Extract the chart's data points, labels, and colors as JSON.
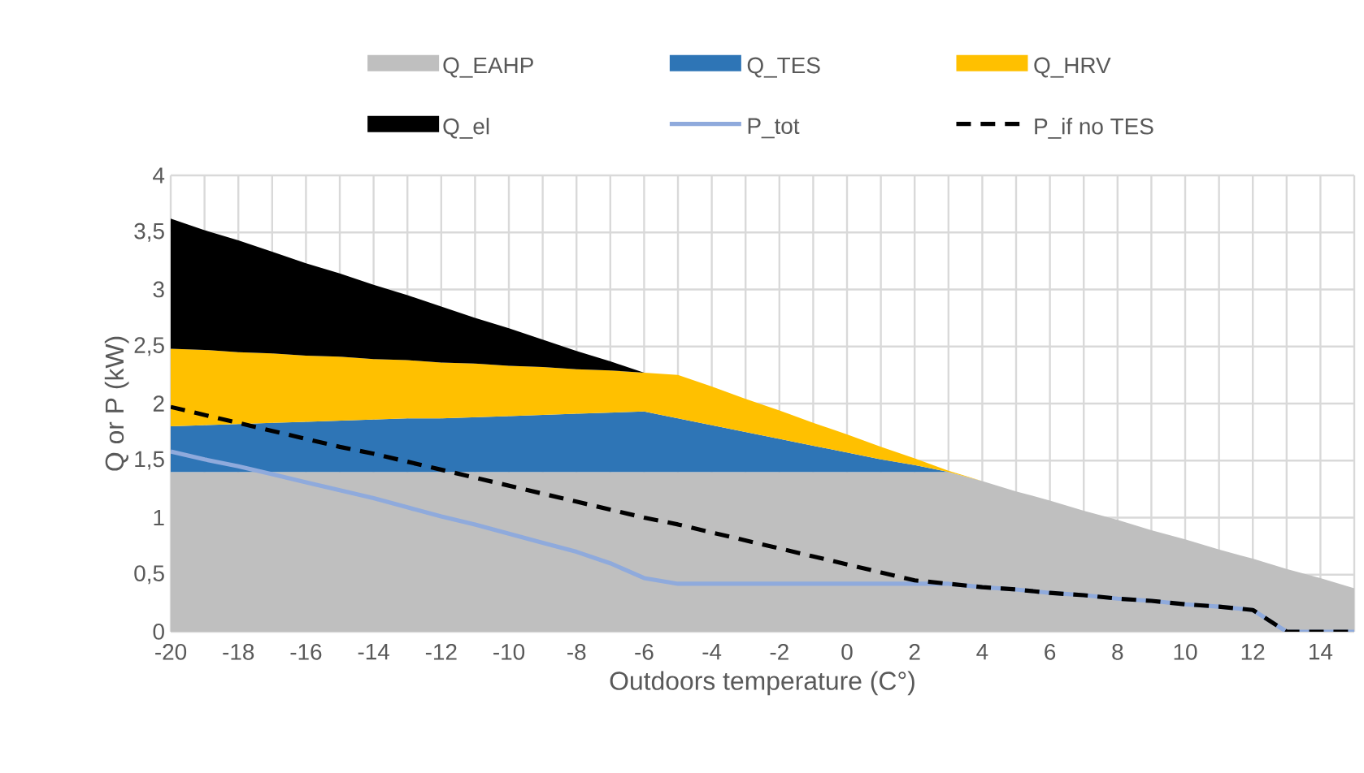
{
  "chart_data": {
    "type": "area",
    "stacked": true,
    "xlabel": "Outdoors temperature (C°)",
    "ylabel": "Q or P (kW)",
    "legend": "top",
    "grid": true,
    "x": [
      -20,
      -19,
      -18,
      -17,
      -16,
      -15,
      -14,
      -13,
      -12,
      -11,
      -10,
      -9,
      -8,
      -7,
      -6,
      -5,
      -4,
      -3,
      -2,
      -1,
      0,
      1,
      2,
      3,
      4,
      5,
      6,
      7,
      8,
      9,
      10,
      11,
      12,
      13,
      14,
      15
    ],
    "xlim": [
      -20,
      15
    ],
    "ylim": [
      0,
      4
    ],
    "xticks": [
      -20,
      {
        "value": -19,
        "label": null
      },
      -18,
      {
        "value": -17,
        "label": null
      },
      -16,
      {
        "value": -15,
        "label": null
      },
      -14,
      {
        "value": -13,
        "label": null
      },
      -12,
      {
        "value": -11,
        "label": null
      },
      -10,
      {
        "value": -9,
        "label": null
      },
      -8,
      {
        "value": -7,
        "label": null
      },
      -6,
      {
        "value": -5,
        "label": null
      },
      -4,
      {
        "value": -3,
        "label": null
      },
      -2,
      {
        "value": -1,
        "label": null
      },
      0,
      {
        "value": 1,
        "label": null
      },
      2,
      {
        "value": 3,
        "label": null
      },
      4,
      {
        "value": 5,
        "label": null
      },
      6,
      {
        "value": 7,
        "label": null
      },
      8,
      {
        "value": 9,
        "label": null
      },
      10,
      {
        "value": 11,
        "label": null
      },
      12,
      {
        "value": 13,
        "label": null
      },
      14,
      {
        "value": 15,
        "label": null
      }
    ],
    "yticks": [
      0,
      {
        "value": 0.5,
        "label": "0,5"
      },
      1,
      {
        "value": 1.5,
        "label": "1,5"
      },
      2,
      {
        "value": 2.5,
        "label": "2,5"
      },
      3,
      {
        "value": 3.5,
        "label": "3,5"
      },
      4
    ],
    "series": [
      {
        "name": "Q_EAHP",
        "color": "#bfbfbf",
        "values": [
          1.4,
          1.4,
          1.4,
          1.4,
          1.4,
          1.4,
          1.4,
          1.4,
          1.4,
          1.4,
          1.4,
          1.4,
          1.4,
          1.4,
          1.4,
          1.4,
          1.4,
          1.4,
          1.4,
          1.4,
          1.4,
          1.4,
          1.4,
          1.4,
          1.32,
          1.23,
          1.15,
          1.06,
          0.98,
          0.89,
          0.81,
          0.72,
          0.64,
          0.55,
          0.47,
          0.38
        ]
      },
      {
        "name": "Q_TES",
        "color": "#2e75b6",
        "values": [
          0.4,
          0.41,
          0.42,
          0.43,
          0.44,
          0.45,
          0.46,
          0.47,
          0.47,
          0.48,
          0.49,
          0.5,
          0.51,
          0.52,
          0.53,
          0.47,
          0.41,
          0.35,
          0.29,
          0.23,
          0.17,
          0.11,
          0.06,
          0,
          0,
          0,
          0,
          0,
          0,
          0,
          0,
          0,
          0,
          0,
          0,
          0
        ]
      },
      {
        "name": "Q_HRV",
        "color": "#ffc000",
        "values": [
          0.68,
          0.66,
          0.63,
          0.61,
          0.58,
          0.56,
          0.53,
          0.51,
          0.49,
          0.47,
          0.44,
          0.42,
          0.39,
          0.37,
          0.34,
          0.38,
          0.34,
          0.29,
          0.25,
          0.2,
          0.16,
          0.11,
          0.06,
          0.01,
          0,
          0,
          0,
          0,
          0,
          0,
          0,
          0,
          0,
          0,
          0,
          0
        ]
      },
      {
        "name": "Q_el",
        "color": "#000000",
        "values": [
          1.14,
          1.05,
          0.98,
          0.89,
          0.81,
          0.73,
          0.65,
          0.57,
          0.49,
          0.4,
          0.33,
          0.24,
          0.16,
          0.08,
          0,
          0,
          0,
          0,
          0,
          0,
          0,
          0,
          0,
          0,
          0,
          0,
          0,
          0,
          0,
          0,
          0,
          0,
          0,
          0,
          0,
          0
        ]
      },
      {
        "name": "P_tot",
        "type": "line",
        "line_style": "solid",
        "color": "#8faadc",
        "values": [
          1.58,
          1.51,
          1.45,
          1.38,
          1.31,
          1.24,
          1.17,
          1.09,
          1.01,
          0.94,
          0.86,
          0.78,
          0.7,
          0.6,
          0.47,
          0.42,
          0.42,
          0.42,
          0.42,
          0.42,
          0.42,
          0.42,
          0.42,
          0.42,
          0.39,
          0.37,
          0.34,
          0.32,
          0.29,
          0.27,
          0.24,
          0.22,
          0.19,
          0,
          0,
          0
        ]
      },
      {
        "name": "P_if no TES",
        "type": "line",
        "line_style": "dashed",
        "color": "#000000",
        "values": [
          1.97,
          1.9,
          1.83,
          1.76,
          1.69,
          1.62,
          1.56,
          1.49,
          1.42,
          1.35,
          1.28,
          1.21,
          1.14,
          1.07,
          1.0,
          0.94,
          0.87,
          0.8,
          0.73,
          0.66,
          0.59,
          0.52,
          0.45,
          0.42,
          0.39,
          0.37,
          0.34,
          0.32,
          0.29,
          0.27,
          0.24,
          0.22,
          0.19,
          0,
          0,
          0
        ]
      }
    ]
  }
}
